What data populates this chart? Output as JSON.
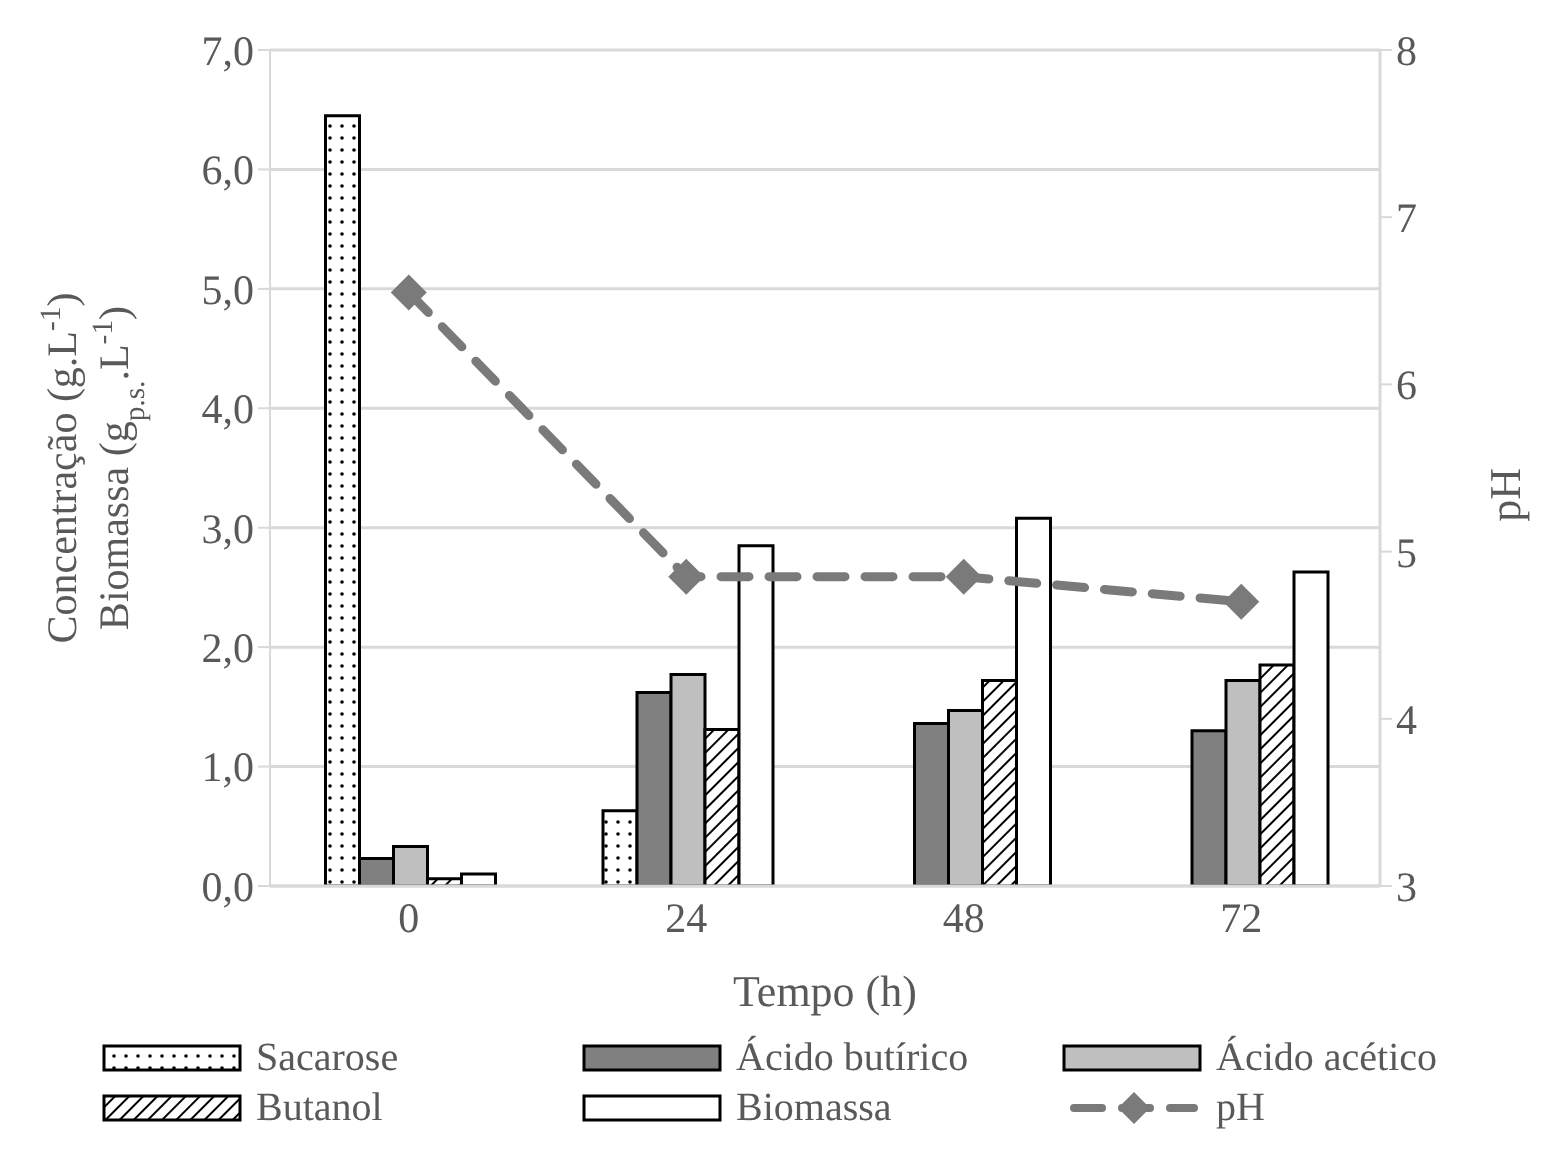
{
  "chart_data": {
    "type": "bar",
    "xlabel": "Tempo (h)",
    "ylabel": "Concentração (g.L$^{-1}$)\nBiomassa (g$_{p.s.}$.L$^{-1}$)",
    "y2label": "pH",
    "categories": [
      "0",
      "24",
      "48",
      "72"
    ],
    "series": [
      {
        "name": "Sacarose",
        "color": "#000000",
        "values": [
          6.45,
          0.63,
          0,
          0
        ]
      },
      {
        "name": "Ácido butírico",
        "color": "#808080",
        "values": [
          0.23,
          1.62,
          1.36,
          1.3
        ]
      },
      {
        "name": "Ácido acético",
        "color": "#bfbfbf",
        "values": [
          0.33,
          1.77,
          1.47,
          1.72
        ]
      },
      {
        "name": "Butanol",
        "color": "#000000",
        "values": [
          0.06,
          1.31,
          1.72,
          1.85
        ]
      },
      {
        "name": "Biomassa",
        "color": "#ffffff",
        "values": [
          0.1,
          2.85,
          3.08,
          2.63
        ]
      },
      {
        "name": "pH",
        "type": "line",
        "axis": "y2",
        "color": "#7a7a7a",
        "line_style": "dashed",
        "marker": "diamond",
        "values": [
          6.55,
          4.85,
          4.85,
          4.7
        ]
      }
    ],
    "ylim": [
      0,
      7
    ],
    "yticks": [
      {
        "value": 0,
        "label": "0,0"
      },
      {
        "value": 1,
        "label": "1,0"
      },
      {
        "value": 2,
        "label": "2,0"
      },
      {
        "value": 3,
        "label": "3,0"
      },
      {
        "value": 4,
        "label": "4,0"
      },
      {
        "value": 5,
        "label": "5,0"
      },
      {
        "value": 6,
        "label": "6,0"
      },
      {
        "value": 7,
        "label": "7,0"
      }
    ],
    "y2lim": [
      3,
      8
    ],
    "y2ticks": [
      3,
      4,
      5,
      6,
      7,
      8
    ],
    "grid": "y",
    "legend": "bottom"
  }
}
